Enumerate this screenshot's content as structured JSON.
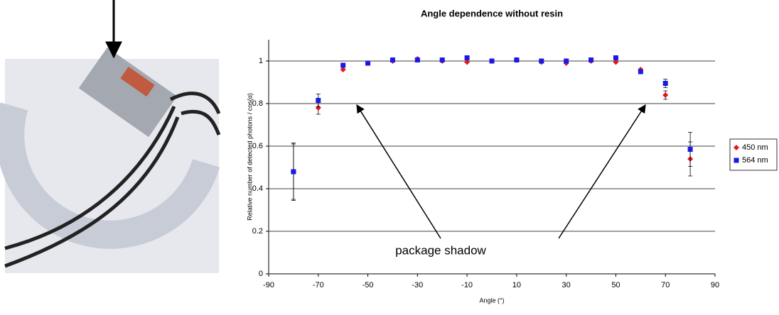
{
  "chart_data": {
    "type": "scatter",
    "title": "Angle dependence without resin",
    "x_label": "Angle (°)",
    "y_label": "Relative number of detected photons / cos(α)",
    "annotation": "package shadow",
    "x": [
      -80,
      -70,
      -60,
      -50,
      -40,
      -30,
      -20,
      -10,
      0,
      10,
      20,
      30,
      40,
      50,
      60,
      70,
      80
    ],
    "series": [
      {
        "name": "450 nm",
        "color": "#e8141b",
        "marker": "diamond",
        "values": [
          0.48,
          0.78,
          0.96,
          0.99,
          1.0,
          1.01,
          1.0,
          0.995,
          1.0,
          1.005,
          0.995,
          0.99,
          1.0,
          0.995,
          0.96,
          0.84,
          0.54
        ],
        "errors": [
          0.13,
          0.03,
          null,
          null,
          null,
          null,
          null,
          null,
          null,
          null,
          null,
          null,
          null,
          null,
          null,
          0.02,
          0.08
        ]
      },
      {
        "name": "564 nm",
        "color": "#1a1ae6",
        "marker": "square",
        "values": [
          0.48,
          0.815,
          0.98,
          0.99,
          1.005,
          1.005,
          1.005,
          1.015,
          1.0,
          1.005,
          1.0,
          1.0,
          1.005,
          1.015,
          0.95,
          0.895,
          0.585
        ],
        "errors": [
          0.135,
          0.03,
          null,
          null,
          null,
          null,
          null,
          null,
          null,
          null,
          null,
          null,
          null,
          null,
          null,
          0.02,
          0.08
        ]
      }
    ],
    "xlim": [
      -90,
      90
    ],
    "xticks": [
      -90,
      -70,
      -50,
      -30,
      -10,
      10,
      30,
      50,
      70,
      90
    ],
    "ylim": [
      0,
      1.1
    ],
    "yticks": [
      0,
      0.2,
      0.4,
      0.6,
      0.8,
      1
    ],
    "grid": true,
    "legend": "right"
  }
}
